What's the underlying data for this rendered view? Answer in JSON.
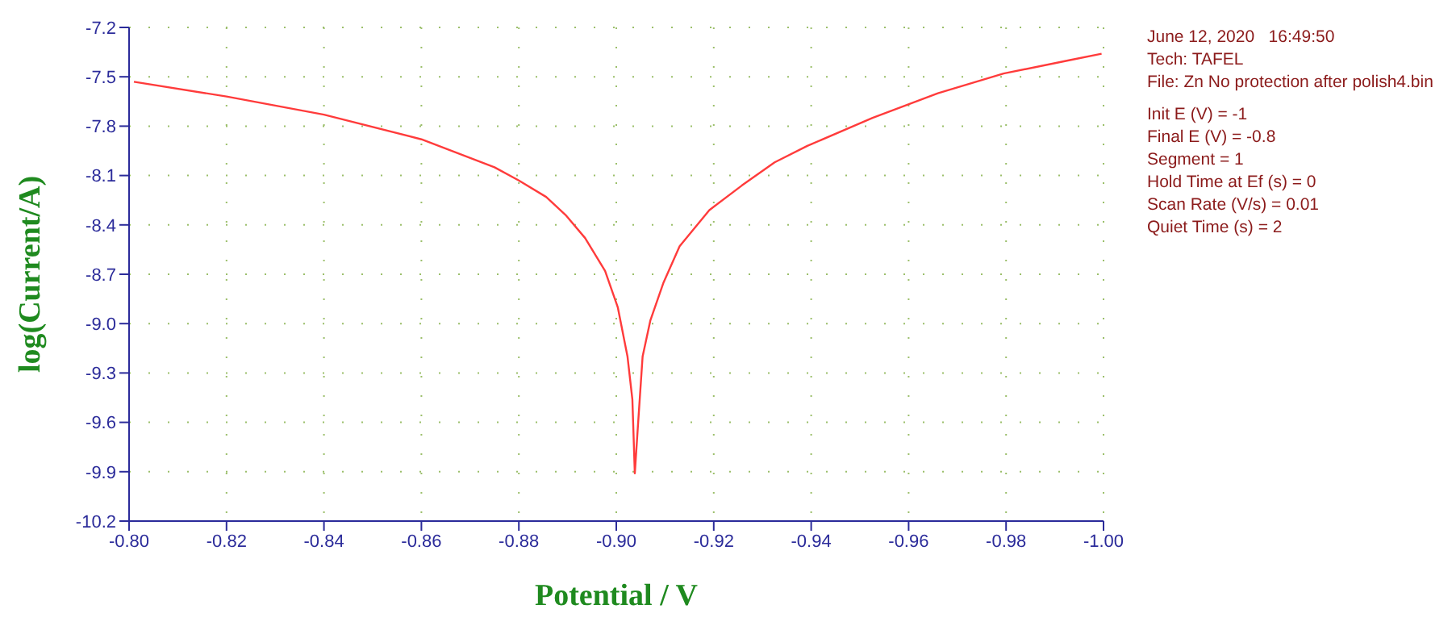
{
  "chart_data": {
    "type": "line",
    "xlabel": "Potential / V",
    "ylabel": "log(Current/A)",
    "xlim": [
      -0.8,
      -1.0
    ],
    "xticks": [
      {
        "value": -0.8,
        "label": "-0.80"
      },
      {
        "value": -0.82,
        "label": "-0.82"
      },
      {
        "value": -0.84,
        "label": "-0.84"
      },
      {
        "value": -0.86,
        "label": "-0.86"
      },
      {
        "value": -0.88,
        "label": "-0.88"
      },
      {
        "value": -0.9,
        "label": "-0.90"
      },
      {
        "value": -0.92,
        "label": "-0.92"
      },
      {
        "value": -0.94,
        "label": "-0.94"
      },
      {
        "value": -0.96,
        "label": "-0.96"
      },
      {
        "value": -0.98,
        "label": "-0.98"
      },
      {
        "value": -1.0,
        "label": "-1.00"
      }
    ],
    "ylim": [
      -10.2,
      -7.2
    ],
    "yticks": [
      {
        "value": -10.2,
        "label": "-10.2"
      },
      {
        "value": -9.9,
        "label": "-9.9"
      },
      {
        "value": -9.6,
        "label": "-9.6"
      },
      {
        "value": -9.3,
        "label": "-9.3"
      },
      {
        "value": -9.0,
        "label": "-9.0"
      },
      {
        "value": -8.7,
        "label": "-8.7"
      },
      {
        "value": -8.4,
        "label": "-8.4"
      },
      {
        "value": -8.1,
        "label": "-8.1"
      },
      {
        "value": -7.8,
        "label": "-7.8"
      },
      {
        "value": -7.5,
        "label": "-7.5"
      },
      {
        "value": -7.2,
        "label": "-7.2"
      }
    ],
    "grid": true,
    "series": [
      {
        "color": "#ff3b3b",
        "x": [
          -0.801,
          -0.82,
          -0.84,
          -0.86,
          -0.875,
          -0.88,
          -0.8856,
          -0.8896,
          -0.8936,
          -0.8977,
          -0.9003,
          -0.9023,
          -0.9033,
          -0.9038,
          -0.9044,
          -0.9054,
          -0.907,
          -0.9097,
          -0.913,
          -0.9191,
          -0.9258,
          -0.9325,
          -0.9392,
          -0.9526,
          -0.966,
          -0.9795,
          -0.9929,
          -0.9996
        ],
        "values": [
          -7.53,
          -7.62,
          -7.73,
          -7.88,
          -8.05,
          -8.13,
          -8.23,
          -8.34,
          -8.48,
          -8.68,
          -8.9,
          -9.2,
          -9.46,
          -9.91,
          -9.64,
          -9.2,
          -8.98,
          -8.75,
          -8.53,
          -8.31,
          -8.16,
          -8.02,
          -7.92,
          -7.75,
          -7.6,
          -7.48,
          -7.4,
          -7.36
        ]
      }
    ],
    "annotations": [
      "June 12, 2020   16:49:50",
      "Tech: TAFEL",
      "File: Zn No protection after polish4.bin",
      "Init E (V) = -1",
      "Final E (V) = -0.8",
      "Segment = 1",
      "Hold Time at Ef (s) = 0",
      "Scan Rate (V/s) = 0.01",
      "Quiet Time (s) = 2"
    ]
  }
}
